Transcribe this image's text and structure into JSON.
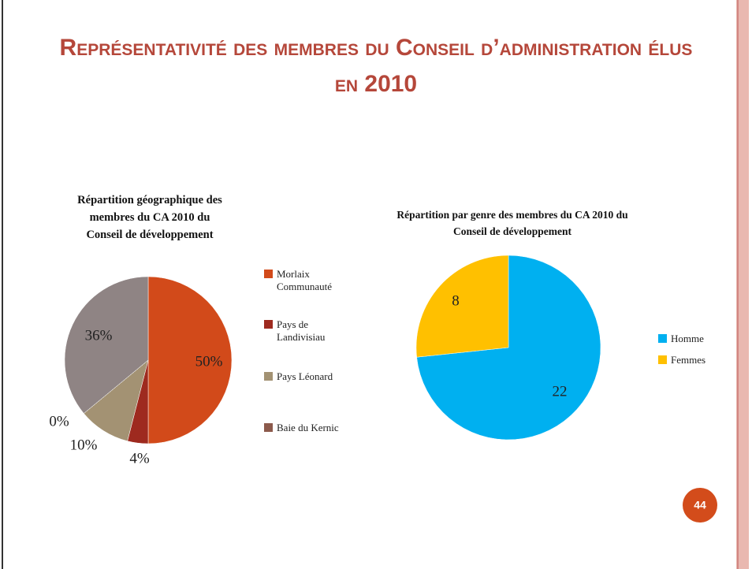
{
  "slide": {
    "title": "Représentativité des membres du Conseil d’administration élus en 2010",
    "page_number": "44"
  },
  "chart_data": [
    {
      "type": "pie",
      "title": "Répartition géographique des membres du CA 2010 du Conseil de développement",
      "categories": [
        "Morlaix Communauté",
        "Pays de Landivisiau",
        "Pays Léonard",
        "Baie du Kernic",
        null
      ],
      "values": [
        50,
        4,
        10,
        0,
        36
      ],
      "value_labels": [
        "50%",
        "4%",
        "10%",
        "0%",
        "36%"
      ],
      "colors": [
        "#d24a1a",
        "#9e2a1f",
        "#a39273",
        "#8c5a4c",
        "#8f8484"
      ]
    },
    {
      "type": "pie",
      "title": "Répartition par genre des membres du CA 2010 du Conseil de développement",
      "categories": [
        "Homme",
        "Femmes"
      ],
      "values": [
        22,
        8
      ],
      "colors": [
        "#00b0f0",
        "#ffc000"
      ]
    }
  ]
}
